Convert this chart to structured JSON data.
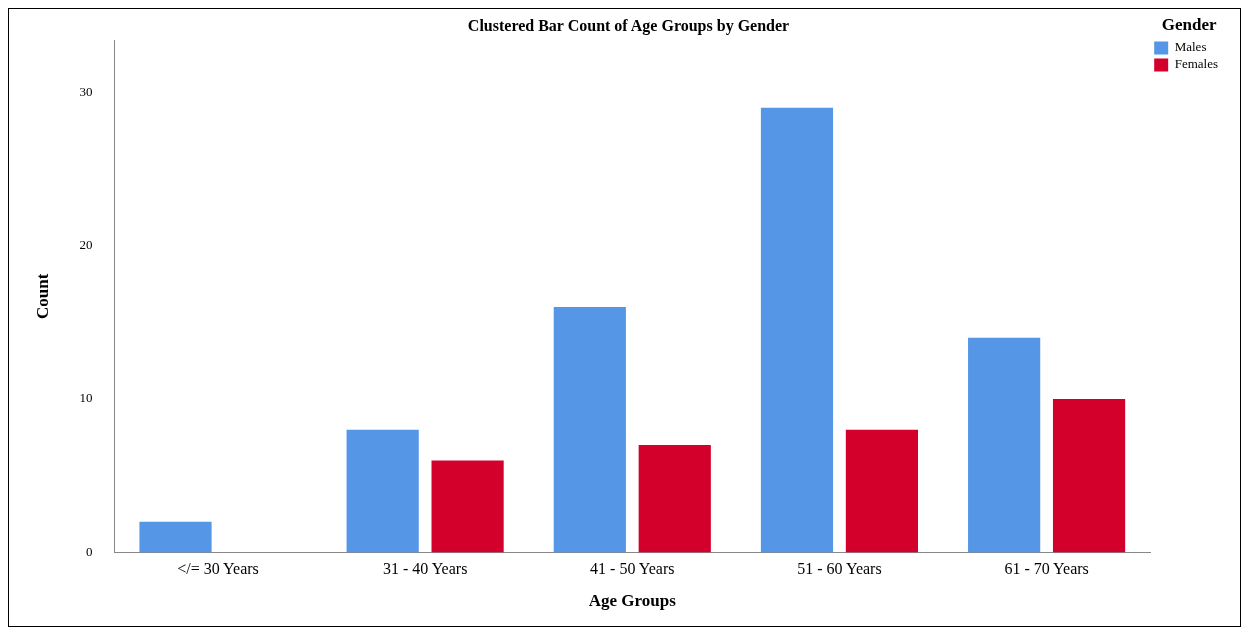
{
  "chart_data": {
    "type": "bar",
    "title": "Clustered Bar Count of Age Groups by Gender",
    "xlabel": "Age Groups",
    "ylabel": "Count",
    "legend_title": "Gender",
    "categories": [
      "</= 30 Years",
      "31 - 40 Years",
      "41 - 50 Years",
      "51 - 60 Years",
      "61 - 70 Years"
    ],
    "series": [
      {
        "name": "Males",
        "color": "#5596e6",
        "values": [
          2,
          8,
          16,
          29,
          14
        ]
      },
      {
        "name": "Females",
        "color": "#d3002c",
        "values": [
          null,
          6,
          7,
          8,
          10
        ]
      }
    ],
    "ylim": [
      0,
      33.4
    ],
    "yticks": [
      0,
      10,
      20,
      30
    ],
    "grid": false,
    "legend": "top right"
  }
}
